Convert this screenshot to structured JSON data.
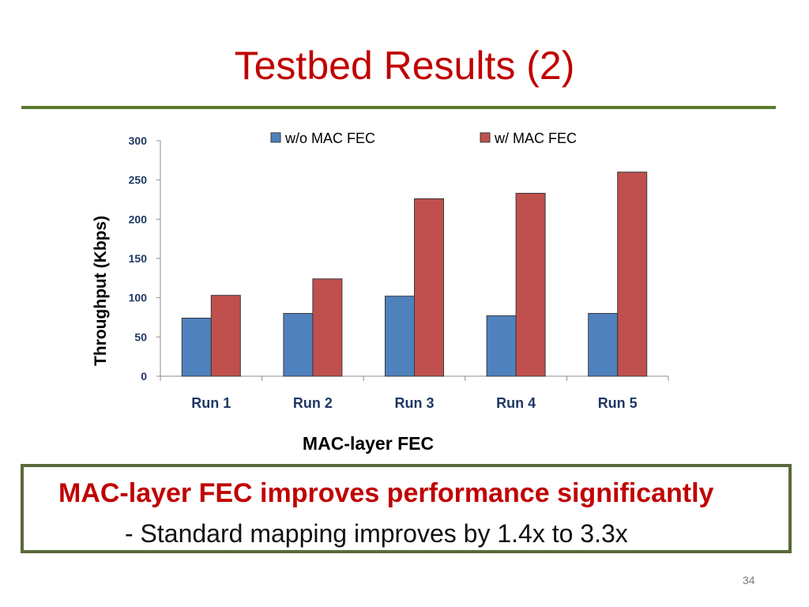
{
  "slide": {
    "title": "Testbed Results (2)",
    "page_number": "34"
  },
  "callout": {
    "headline": "MAC-layer FEC improves performance significantly",
    "detail": "- Standard mapping improves by 1.4x to 3.3x"
  },
  "colors": {
    "title": "#c00000",
    "rule": "#5a7a2d",
    "axis_text": "#1f3864",
    "series_wo": "#4f81bd",
    "series_w": "#c0504d"
  },
  "chart_data": {
    "type": "bar",
    "title": "",
    "xlabel": "MAC-layer FEC",
    "ylabel": "Throughput (Kbps)",
    "categories": [
      "Run 1",
      "Run 2",
      "Run 3",
      "Run 4",
      "Run 5"
    ],
    "series": [
      {
        "name": "w/o MAC FEC",
        "values": [
          74,
          80,
          102,
          77,
          80
        ]
      },
      {
        "name": "w/ MAC FEC",
        "values": [
          103,
          124,
          226,
          233,
          260
        ]
      }
    ],
    "ylim": [
      0,
      300
    ],
    "yticks": [
      0,
      50,
      100,
      150,
      200,
      250,
      300
    ],
    "grid": false,
    "legend_position": "top"
  }
}
